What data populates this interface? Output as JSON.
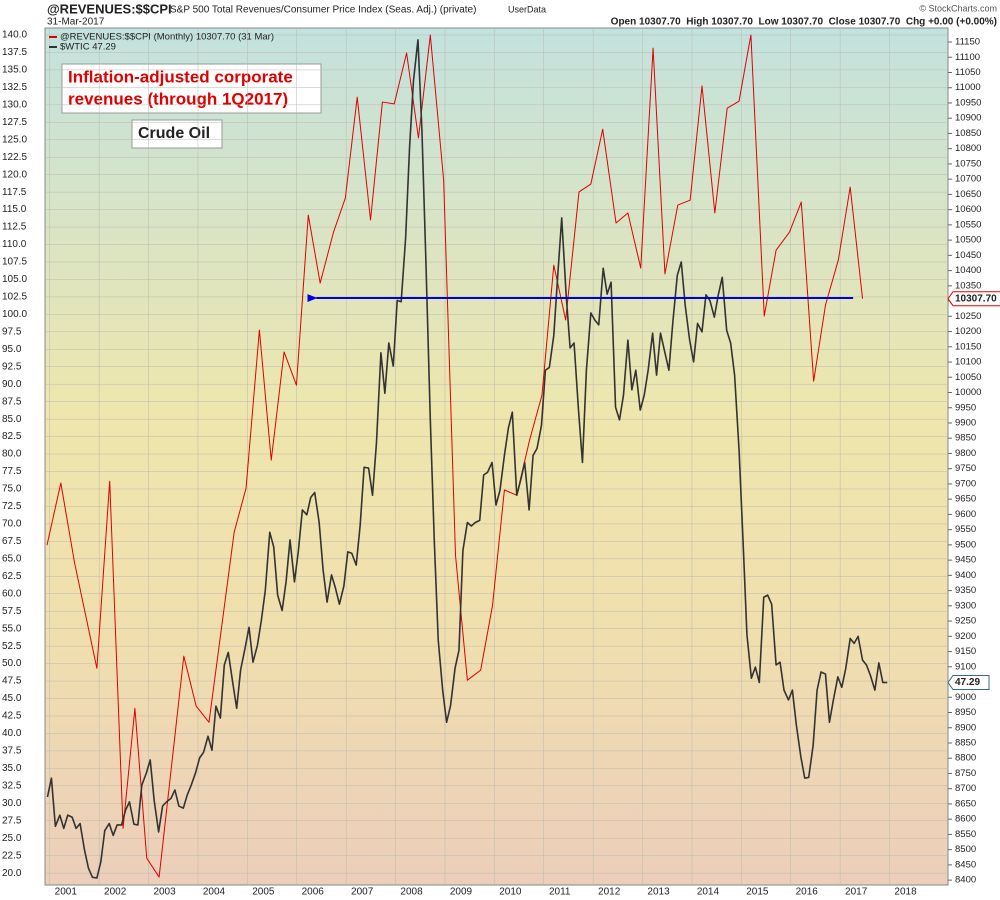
{
  "chart_data": {
    "type": "line",
    "header": {
      "symbol": "@REVENUES:$$CPI",
      "description": "S&P 500 Total Revenues/Consumer Price Index (Seas. Adj.) (private)",
      "source": "UserData",
      "date": "31-Mar-2017",
      "ohlc": "Open 10307.70  High 10307.70  Low 10307.70  Close 10307.70  Chg +0.00 (+0.00%)",
      "credit": "© StockCharts.com"
    },
    "annotation_lines": [
      "Inflation-adjusted corporate",
      "revenues (through 1Q2017)"
    ],
    "oil_label": "Crude Oil",
    "arrow": {
      "from": 2016.98,
      "to": 2005.95,
      "value": 10310,
      "color": "#0000dd"
    },
    "xlim": [
      2000.62,
      2018.9
    ],
    "xticks": [
      2001,
      2002,
      2003,
      2004,
      2005,
      2006,
      2007,
      2008,
      2009,
      2010,
      2011,
      2012,
      2013,
      2014,
      2015,
      2016,
      2017,
      2018
    ],
    "ylim": [
      18.3,
      141
    ],
    "yticks": [
      {
        "value": 20,
        "label": "20.0"
      },
      22.5,
      {
        "value": 25,
        "label": "25.0"
      },
      27.5,
      {
        "value": 30,
        "label": "30.0"
      },
      32.5,
      {
        "value": 35,
        "label": "35.0"
      },
      37.5,
      {
        "value": 40,
        "label": "40.0"
      },
      42.5,
      {
        "value": 45,
        "label": "45.0"
      },
      47.5,
      {
        "value": 50,
        "label": "50.0"
      },
      52.5,
      {
        "value": 55,
        "label": "55.0"
      },
      57.5,
      {
        "value": 60,
        "label": "60.0"
      },
      62.5,
      {
        "value": 65,
        "label": "65.0"
      },
      67.5,
      {
        "value": 70,
        "label": "70.0"
      },
      72.5,
      {
        "value": 75,
        "label": "75.0"
      },
      77.5,
      {
        "value": 80,
        "label": "80.0"
      },
      82.5,
      {
        "value": 85,
        "label": "85.0"
      },
      87.5,
      {
        "value": 90,
        "label": "90.0"
      },
      92.5,
      {
        "value": 95,
        "label": "95.0"
      },
      97.5,
      {
        "value": 100,
        "label": "100.0"
      },
      102.5,
      {
        "value": 105,
        "label": "105.0"
      },
      107.5,
      {
        "value": 110,
        "label": "110.0"
      },
      112.5,
      {
        "value": 115,
        "label": "115.0"
      },
      117.5,
      {
        "value": 120,
        "label": "120.0"
      },
      122.5,
      {
        "value": 125,
        "label": "125.0"
      },
      127.5,
      {
        "value": 130,
        "label": "130.0"
      },
      132.5,
      {
        "value": 135,
        "label": "135.0"
      },
      137.5,
      {
        "value": 140,
        "label": "140.0"
      }
    ],
    "y2lim": [
      8384,
      11196
    ],
    "y2ticks": [
      8400,
      8450,
      8500,
      8550,
      8600,
      8650,
      8700,
      8750,
      8800,
      8850,
      8900,
      8950,
      9000,
      9050,
      9100,
      9150,
      9200,
      9250,
      9300,
      9350,
      9400,
      9450,
      9500,
      9550,
      9600,
      9650,
      9700,
      9750,
      9800,
      9850,
      9900,
      9950,
      10000,
      10050,
      10100,
      10150,
      10200,
      10250,
      10300,
      10350,
      10400,
      10450,
      10500,
      10550,
      10600,
      10650,
      10700,
      10750,
      10800,
      10850,
      10900,
      10950,
      11000,
      11050,
      11100,
      11150
    ],
    "grid": true,
    "series": [
      {
        "name": "@REVENUES:$$CPI (Monthly) 10307.70 (31 Mar)",
        "color": "#e00000",
        "axis": "y2",
        "last_value_label": "10307.70",
        "x": [
          2000.66,
          2000.94,
          2001.22,
          2001.67,
          2001.93,
          2002.2,
          2002.44,
          2002.68,
          2002.93,
          2003.43,
          2003.68,
          2003.94,
          2004.45,
          2004.69,
          2004.96,
          2005.2,
          2005.46,
          2005.71,
          2005.95,
          2006.19,
          2006.46,
          2006.7,
          2006.94,
          2007.21,
          2007.45,
          2007.69,
          2007.94,
          2008.18,
          2008.42,
          2008.69,
          2008.93,
          2009.17,
          2009.44,
          2009.68,
          2009.92,
          2010.17,
          2010.43,
          2010.68,
          2010.92,
          2011.16,
          2011.43,
          2011.67,
          2011.91,
          2012.18,
          2012.42,
          2012.68,
          2012.93,
          2013.17,
          2013.43,
          2013.68,
          2013.92,
          2014.18,
          2014.43,
          2014.67,
          2014.91,
          2015.18,
          2015.42,
          2015.69,
          2015.93,
          2016.18,
          2016.42,
          2016.68,
          2016.92,
          2017.17
        ],
        "values": [
          9499,
          9703,
          9440,
          9095,
          9709,
          8570,
          8964,
          8472,
          8410,
          9135,
          8971,
          8918,
          9542,
          9686,
          10205,
          9778,
          10133,
          10024,
          10582,
          10359,
          10526,
          10638,
          10969,
          10566,
          10953,
          10947,
          11114,
          10835,
          11173,
          10697,
          9466,
          9056,
          9089,
          9302,
          9680,
          9663,
          9844,
          9991,
          10418,
          10238,
          10658,
          10684,
          10864,
          10556,
          10589,
          10408,
          11130,
          10389,
          10615,
          10631,
          11006,
          10589,
          10933,
          10956,
          11173,
          10251,
          10467,
          10526,
          10625,
          10037,
          10287,
          10435,
          10674,
          10307.7
        ]
      },
      {
        "name": "$WTIC 47.29",
        "color": "#333333",
        "axis": "y",
        "last_value_label": "47.29",
        "x": [
          2000.67,
          2000.75,
          2000.83,
          2000.92,
          2001,
          2001.08,
          2001.17,
          2001.25,
          2001.33,
          2001.42,
          2001.5,
          2001.58,
          2001.67,
          2001.75,
          2001.83,
          2001.92,
          2002,
          2002.08,
          2002.17,
          2002.25,
          2002.33,
          2002.42,
          2002.5,
          2002.58,
          2002.67,
          2002.75,
          2002.83,
          2002.92,
          2003,
          2003.08,
          2003.17,
          2003.25,
          2003.33,
          2003.42,
          2003.5,
          2003.58,
          2003.67,
          2003.75,
          2003.83,
          2003.92,
          2004,
          2004.08,
          2004.17,
          2004.25,
          2004.33,
          2004.42,
          2004.5,
          2004.58,
          2004.67,
          2004.75,
          2004.83,
          2004.92,
          2005,
          2005.08,
          2005.17,
          2005.25,
          2005.33,
          2005.42,
          2005.5,
          2005.58,
          2005.67,
          2005.75,
          2005.83,
          2005.92,
          2006,
          2006.08,
          2006.17,
          2006.25,
          2006.33,
          2006.42,
          2006.5,
          2006.58,
          2006.67,
          2006.75,
          2006.83,
          2006.92,
          2007,
          2007.08,
          2007.17,
          2007.25,
          2007.33,
          2007.42,
          2007.5,
          2007.58,
          2007.67,
          2007.75,
          2007.83,
          2007.92,
          2008,
          2008.08,
          2008.17,
          2008.25,
          2008.33,
          2008.42,
          2008.5,
          2008.58,
          2008.67,
          2008.75,
          2008.83,
          2008.92,
          2009,
          2009.08,
          2009.17,
          2009.25,
          2009.33,
          2009.42,
          2009.5,
          2009.58,
          2009.67,
          2009.75,
          2009.83,
          2009.92,
          2010,
          2010.08,
          2010.17,
          2010.25,
          2010.33,
          2010.42,
          2010.5,
          2010.58,
          2010.67,
          2010.75,
          2010.83,
          2010.92,
          2011,
          2011.08,
          2011.17,
          2011.25,
          2011.33,
          2011.42,
          2011.5,
          2011.58,
          2011.67,
          2011.75,
          2011.83,
          2011.92,
          2012,
          2012.08,
          2012.17,
          2012.25,
          2012.33,
          2012.42,
          2012.5,
          2012.58,
          2012.67,
          2012.75,
          2012.83,
          2012.92,
          2013,
          2013.08,
          2013.17,
          2013.25,
          2013.33,
          2013.42,
          2013.5,
          2013.58,
          2013.67,
          2013.75,
          2013.83,
          2013.92,
          2014,
          2014.08,
          2014.17,
          2014.25,
          2014.33,
          2014.42,
          2014.5,
          2014.58,
          2014.67,
          2014.75,
          2014.83,
          2014.92,
          2015,
          2015.08,
          2015.17,
          2015.25,
          2015.33,
          2015.42,
          2015.5,
          2015.58,
          2015.67,
          2015.75,
          2015.83,
          2015.92,
          2016,
          2016.08,
          2016.17,
          2016.25,
          2016.33,
          2016.42,
          2016.5,
          2016.58,
          2016.67,
          2016.75,
          2016.83,
          2016.92,
          2017,
          2017.08,
          2017.17,
          2017.25,
          2017.33,
          2017.42,
          2017.5,
          2017.58,
          2017.67
        ],
        "values": [
          30.9,
          33.6,
          26.7,
          28.3,
          26.4,
          28.3,
          28.0,
          26.4,
          27.1,
          23.3,
          20.7,
          19.4,
          19.3,
          21.6,
          26.1,
          27.1,
          25.4,
          26.9,
          26.9,
          29.0,
          30.2,
          27.0,
          26.9,
          32.6,
          34.3,
          36.2,
          30.4,
          25.9,
          29.6,
          30.2,
          30.7,
          31.9,
          29.6,
          29.3,
          31.2,
          32.6,
          34.4,
          36.5,
          37.3,
          39.6,
          37.6,
          43.9,
          42.2,
          49.8,
          51.6,
          47.3,
          43.6,
          49.1,
          52.2,
          55.2,
          50.2,
          52.6,
          56.2,
          60.5,
          68.8,
          66.7,
          59.8,
          57.6,
          61.7,
          67.7,
          61.7,
          66.2,
          72.0,
          71.3,
          73.8,
          74.5,
          70.2,
          63.4,
          58.8,
          62.7,
          60.8,
          58.5,
          61.1,
          66.0,
          65.8,
          64.1,
          69.8,
          78.1,
          78.0,
          74.1,
          81.6,
          94.5,
          88.7,
          95.9,
          92.6,
          102.0,
          101.8,
          110.9,
          123.9,
          133.5,
          139.3,
          126.4,
          107.8,
          84.9,
          67.7,
          53.4,
          46.2,
          41.6,
          44.0,
          49.3,
          51.9,
          66.2,
          70.2,
          69.7,
          70.2,
          70.5,
          77.0,
          77.4,
          78.8,
          72.7,
          74.8,
          79.8,
          83.7,
          86.0,
          74.1,
          76.3,
          78.8,
          72.0,
          79.8,
          80.8,
          84.1,
          92.0,
          92.4,
          97.0,
          105.6,
          113.8,
          102.8,
          95.2,
          95.9,
          86.3,
          78.8,
          92.0,
          100.2,
          99.2,
          98.5,
          106.6,
          102.9,
          104.6,
          86.7,
          84.9,
          88.4,
          96.3,
          89.2,
          92.0,
          86.3,
          88.4,
          92.0,
          97.3,
          91.3,
          97.3,
          94.5,
          92.0,
          98.9,
          105.6,
          107.5,
          101.3,
          96.3,
          93.2,
          98.7,
          97.5,
          102.8,
          102.0,
          99.6,
          102.8,
          105.3,
          97.7,
          95.9,
          91.3,
          80.6,
          67.7,
          54.1,
          47.9,
          49.5,
          47.3,
          59.5,
          59.8,
          58.5,
          49.8,
          50.2,
          46.2,
          44.8,
          46.2,
          41.2,
          36.7,
          33.6,
          33.7,
          38.3,
          46.2,
          48.8,
          48.5,
          41.6,
          44.8,
          48.1,
          46.6,
          49.3,
          53.6,
          52.9,
          53.9,
          50.5,
          49.8,
          48.3,
          46.2,
          50.1,
          47.3,
          47.29
        ]
      }
    ]
  }
}
